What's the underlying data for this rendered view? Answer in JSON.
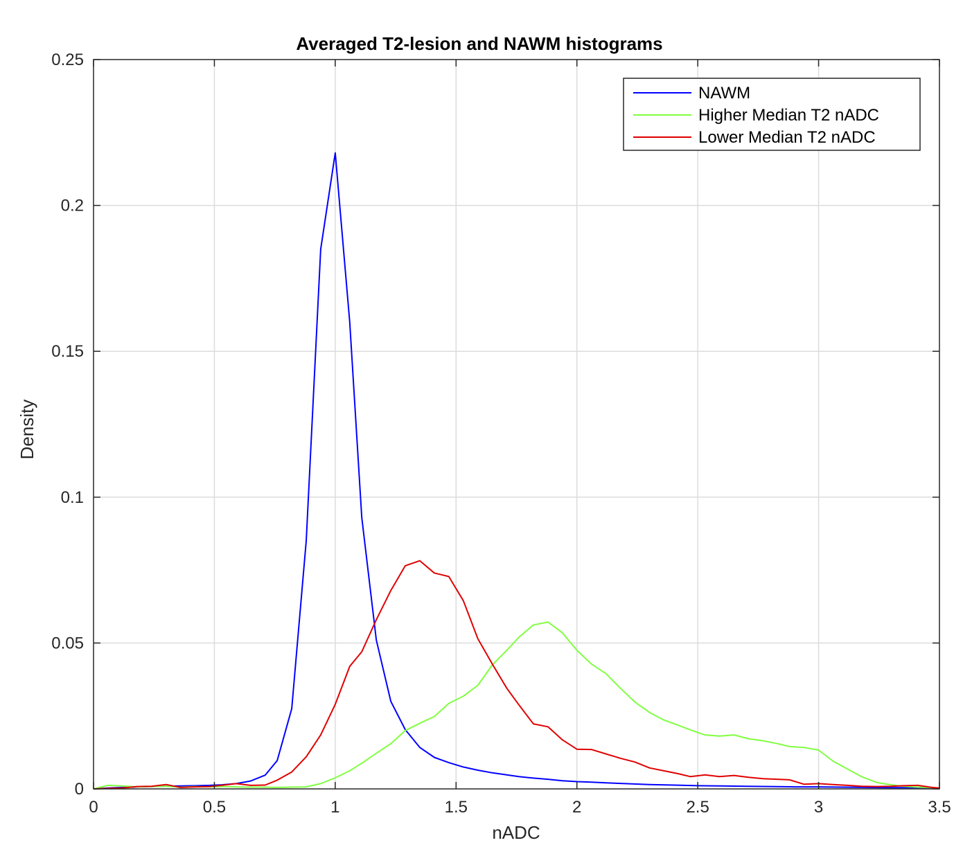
{
  "chart_data": {
    "type": "line",
    "title": "Averaged T2-lesion and NAWM histograms",
    "xlabel": "nADC",
    "ylabel": "Density",
    "xlim": [
      0,
      3.5
    ],
    "ylim": [
      0,
      0.25
    ],
    "xticks": [
      0,
      0.5,
      1,
      1.5,
      2,
      2.5,
      3,
      3.5
    ],
    "xtick_labels": [
      "0",
      "0.5",
      "1",
      "1.5",
      "2",
      "2.5",
      "3",
      "3.5"
    ],
    "yticks": [
      0,
      0.05,
      0.1,
      0.15,
      0.2,
      0.25
    ],
    "ytick_labels": [
      "0",
      "0.05",
      "0.1",
      "0.15",
      "0.2",
      "0.25"
    ],
    "grid": true,
    "legend_position": "top-right",
    "series": [
      {
        "name": "NAWM",
        "color": "#0000ff",
        "x": [
          0,
          0.06,
          0.12,
          0.18,
          0.24,
          0.3,
          0.36,
          0.42,
          0.48,
          0.53,
          0.59,
          0.65,
          0.71,
          0.76,
          0.82,
          0.88,
          0.94,
          1.0,
          1.06,
          1.11,
          1.17,
          1.23,
          1.29,
          1.35,
          1.41,
          1.47,
          1.53,
          1.59,
          1.65,
          1.71,
          1.76,
          1.82,
          1.88,
          1.94,
          2.0,
          2.06,
          2.12,
          2.2,
          2.3,
          2.4,
          2.5,
          2.6,
          2.7,
          2.8,
          2.9,
          3.0,
          3.1,
          3.2,
          3.3,
          3.4,
          3.5
        ],
        "values": [
          0,
          0.0003,
          0.0005,
          0.0007,
          0.0008,
          0.0009,
          0.001,
          0.0011,
          0.0012,
          0.0014,
          0.0018,
          0.0027,
          0.0047,
          0.0097,
          0.0275,
          0.085,
          0.185,
          0.218,
          0.16,
          0.093,
          0.051,
          0.03,
          0.0203,
          0.0142,
          0.0108,
          0.009,
          0.0075,
          0.0064,
          0.0055,
          0.0048,
          0.0042,
          0.0037,
          0.0033,
          0.0028,
          0.0025,
          0.0023,
          0.0021,
          0.0018,
          0.0015,
          0.0013,
          0.0011,
          0.001,
          0.0009,
          0.0008,
          0.0007,
          0.0007,
          0.0006,
          0.0005,
          0.0004,
          0.0004,
          0.0003
        ]
      },
      {
        "name": "Higher Median T2 nADC",
        "color": "#80ff40",
        "x": [
          0,
          0.06,
          0.12,
          0.18,
          0.24,
          0.3,
          0.36,
          0.42,
          0.48,
          0.53,
          0.59,
          0.65,
          0.71,
          0.76,
          0.82,
          0.88,
          0.94,
          1.0,
          1.06,
          1.11,
          1.17,
          1.23,
          1.29,
          1.35,
          1.41,
          1.47,
          1.53,
          1.59,
          1.65,
          1.71,
          1.76,
          1.82,
          1.88,
          1.94,
          2.0,
          2.06,
          2.12,
          2.18,
          2.24,
          2.3,
          2.36,
          2.42,
          2.47,
          2.53,
          2.59,
          2.65,
          2.71,
          2.77,
          2.83,
          2.88,
          2.94,
          3.0,
          3.06,
          3.12,
          3.18,
          3.24,
          3.3,
          3.35,
          3.41,
          3.47,
          3.5
        ],
        "values": [
          0,
          0.0012,
          0.001,
          0.0007,
          0.0008,
          0.0009,
          0.0006,
          0.0008,
          0.0007,
          0.0008,
          0.0007,
          0.0006,
          0.0006,
          0.0005,
          0.0006,
          0.0007,
          0.0018,
          0.0038,
          0.0062,
          0.0088,
          0.0122,
          0.0155,
          0.02,
          0.0225,
          0.0248,
          0.0293,
          0.0318,
          0.0355,
          0.0425,
          0.0475,
          0.052,
          0.0562,
          0.0572,
          0.0535,
          0.0475,
          0.0428,
          0.0395,
          0.0345,
          0.0298,
          0.0262,
          0.0236,
          0.0218,
          0.0202,
          0.0185,
          0.0181,
          0.0185,
          0.0172,
          0.0165,
          0.0155,
          0.0145,
          0.0142,
          0.0133,
          0.0095,
          0.0068,
          0.0041,
          0.0022,
          0.0014,
          0.0009,
          0.0006,
          0.0004,
          0.0002
        ]
      },
      {
        "name": "Lower Median T2 nADC",
        "color": "#e00000",
        "x": [
          0,
          0.06,
          0.12,
          0.18,
          0.24,
          0.3,
          0.36,
          0.42,
          0.48,
          0.53,
          0.59,
          0.65,
          0.71,
          0.76,
          0.82,
          0.88,
          0.94,
          1.0,
          1.06,
          1.11,
          1.17,
          1.23,
          1.29,
          1.35,
          1.41,
          1.47,
          1.53,
          1.59,
          1.65,
          1.71,
          1.76,
          1.82,
          1.88,
          1.94,
          2.0,
          2.06,
          2.12,
          2.18,
          2.24,
          2.3,
          2.36,
          2.42,
          2.47,
          2.53,
          2.59,
          2.65,
          2.71,
          2.77,
          2.83,
          2.88,
          2.94,
          3.0,
          3.06,
          3.12,
          3.18,
          3.24,
          3.3,
          3.35,
          3.41,
          3.47,
          3.5
        ],
        "values": [
          0,
          0.0002,
          0.0003,
          0.0008,
          0.0009,
          0.0015,
          0.0005,
          0.0007,
          0.0008,
          0.0012,
          0.0018,
          0.0012,
          0.0013,
          0.003,
          0.0058,
          0.011,
          0.0185,
          0.029,
          0.042,
          0.047,
          0.058,
          0.068,
          0.0765,
          0.0782,
          0.074,
          0.0728,
          0.0645,
          0.0515,
          0.0428,
          0.0345,
          0.0288,
          0.0223,
          0.0213,
          0.0168,
          0.0136,
          0.0135,
          0.012,
          0.0105,
          0.0092,
          0.0072,
          0.0062,
          0.0052,
          0.0042,
          0.0048,
          0.0042,
          0.0046,
          0.004,
          0.0035,
          0.0033,
          0.0031,
          0.0016,
          0.0018,
          0.0015,
          0.0012,
          0.0009,
          0.0008,
          0.0009,
          0.0011,
          0.0012,
          0.0005,
          0.0003
        ]
      }
    ]
  }
}
